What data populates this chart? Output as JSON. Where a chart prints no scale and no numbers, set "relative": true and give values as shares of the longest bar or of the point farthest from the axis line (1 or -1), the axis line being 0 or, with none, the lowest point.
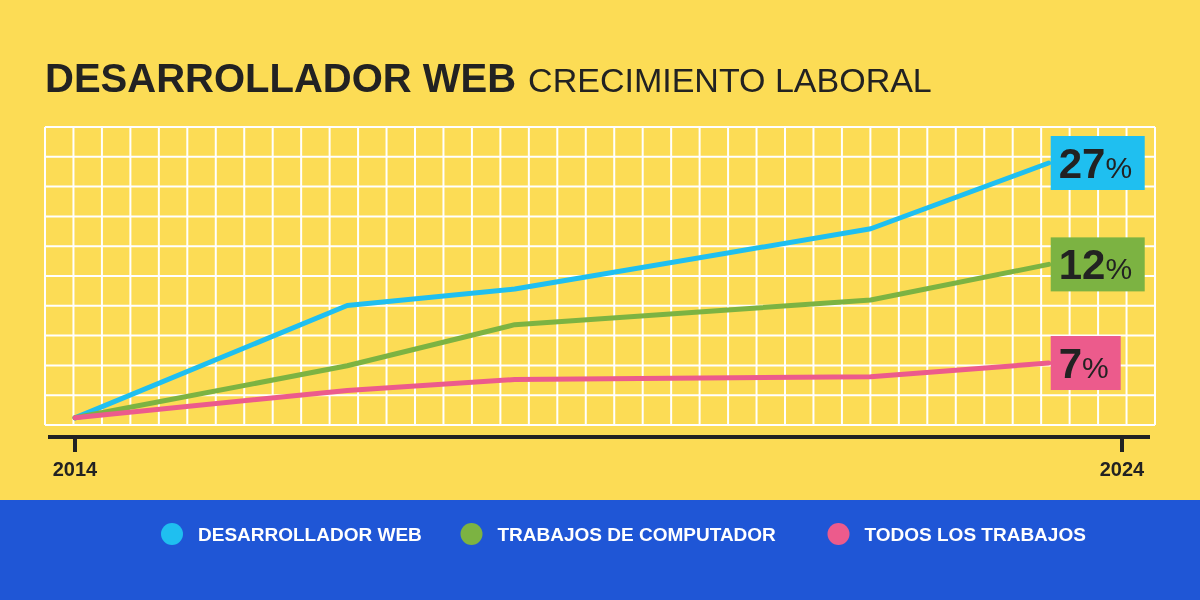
{
  "chart_data": {
    "type": "line",
    "title": "DESARROLLADOR WEB",
    "subtitle": "CRECIMIENTO LABORAL",
    "relative": true,
    "xlim": [
      2014,
      2024
    ],
    "xticks": [
      2014,
      2024
    ],
    "grid": true,
    "legend": "bottom",
    "marker": "none",
    "line_style": "solid",
    "series": [
      {
        "name": "DESARROLLADOR WEB",
        "color": "#1fbff0",
        "x": [
          2014,
          2016.6,
          2018.2,
          2021.6,
          2023.3
        ],
        "values": [
          0.07,
          0.48,
          0.54,
          0.76,
          1
        ]
      },
      {
        "name": "TRABAJOS DE COMPUTADOR",
        "color": "#7cb342",
        "x": [
          2014,
          2016.6,
          2018.2,
          2021.6,
          2023.3
        ],
        "values": [
          0.07,
          0.26,
          0.41,
          0.5,
          0.63
        ]
      },
      {
        "name": "TODOS LOS TRABAJOS",
        "color": "#ec5b8c",
        "x": [
          2014,
          2016.6,
          2018.2,
          2021.6,
          2023.3
        ],
        "values": [
          0.07,
          0.17,
          0.21,
          0.22,
          0.27
        ]
      }
    ],
    "annotations": [
      "27%",
      "12%",
      "7%"
    ]
  }
}
